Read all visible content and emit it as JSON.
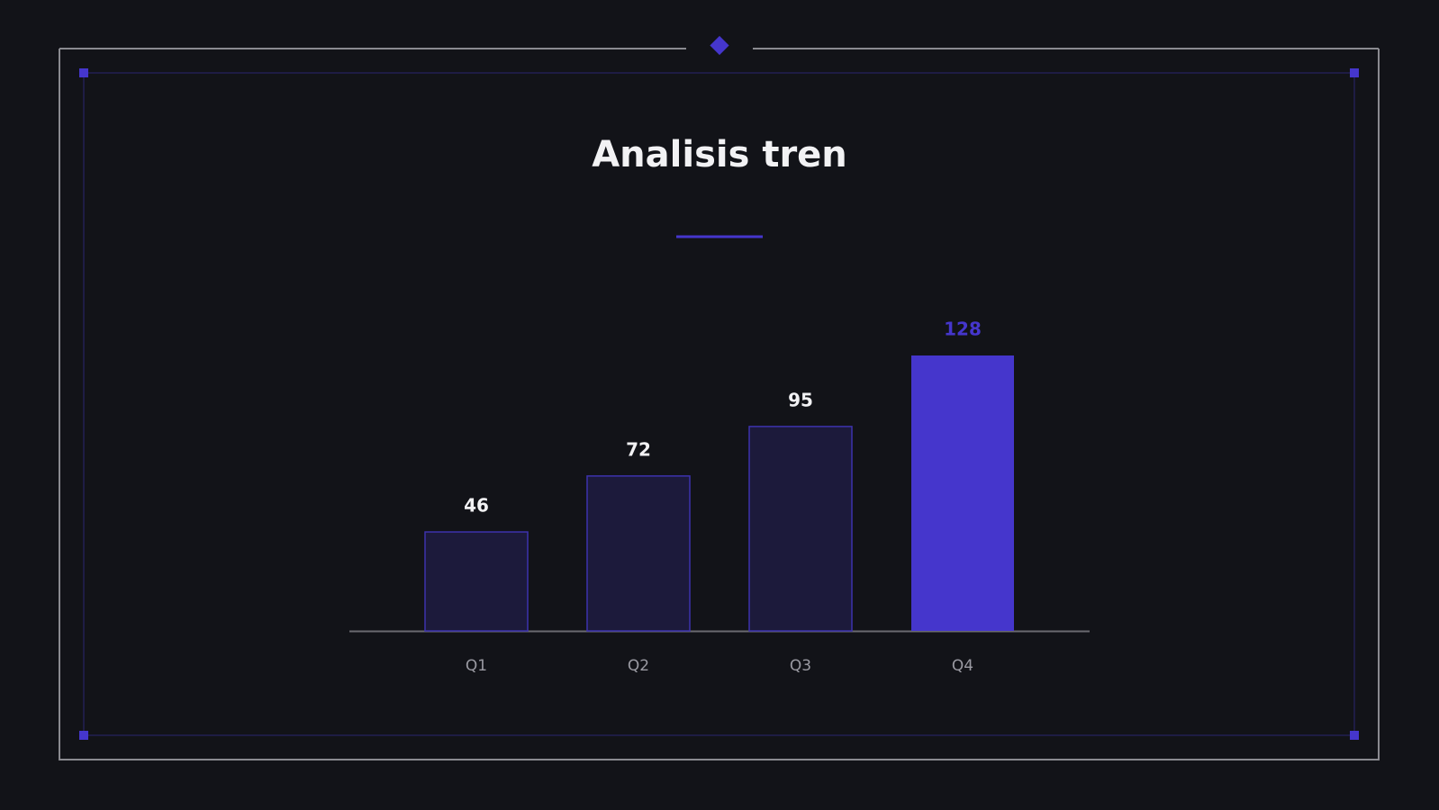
{
  "chart_data": {
    "type": "bar",
    "title": "Analisis tren",
    "categories": [
      "Q1",
      "Q2",
      "Q3",
      "Q4"
    ],
    "values": [
      46,
      72,
      95,
      128
    ],
    "colors": [
      "#1c1a3b",
      "#1c1a3b",
      "#1c1a3b",
      "#4536cc"
    ],
    "highlight_color": "#4536cc"
  }
}
